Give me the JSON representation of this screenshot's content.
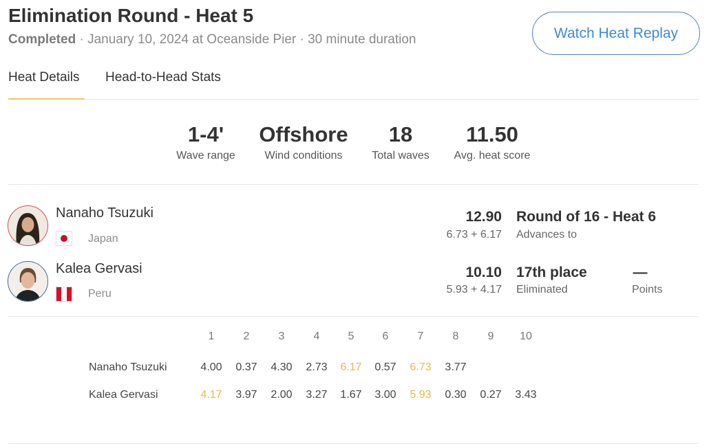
{
  "header": {
    "title": "Elimination Round - Heat 5",
    "status": "Completed",
    "details": " · January 10, 2024 at Oceanside Pier · 30 minute duration",
    "replay_button": "Watch Heat Replay"
  },
  "tabs": [
    {
      "label": "Heat Details",
      "active": true
    },
    {
      "label": "Head-to-Head Stats",
      "active": false
    }
  ],
  "stats": [
    {
      "value": "1-4'",
      "label": "Wave range"
    },
    {
      "value": "Offshore",
      "label": "Wind conditions"
    },
    {
      "value": "18",
      "label": "Total waves"
    },
    {
      "value": "11.50",
      "label": "Avg. heat score"
    }
  ],
  "athletes": [
    {
      "name": "Nanaho Tsuzuki",
      "country": "Japan",
      "flag": "japan-flag",
      "total": "12.90",
      "best_waves": "6.73 + 6.17",
      "result": "Round of 16 - Heat 6",
      "result_label": "Advances to",
      "ring_color": "#c94a4a"
    },
    {
      "name": "Kalea Gervasi",
      "country": "Peru",
      "flag": "peru-flag",
      "total": "10.10",
      "best_waves": "5.93 + 4.17",
      "result": "17th place",
      "result_label": "Eliminated",
      "points": "—",
      "points_label": "Points",
      "ring_color": "#3b5f9a"
    }
  ],
  "wave_table": {
    "headers": [
      "1",
      "2",
      "3",
      "4",
      "5",
      "6",
      "7",
      "8",
      "9",
      "10"
    ],
    "rows": [
      {
        "name": "Nanaho Tsuzuki",
        "scores": [
          "4.00",
          "0.37",
          "4.30",
          "2.73",
          "6.17",
          "0.57",
          "6.73",
          "3.77"
        ],
        "highlighted": [
          4,
          6
        ]
      },
      {
        "name": "Kalea Gervasi",
        "scores": [
          "4.17",
          "3.97",
          "2.00",
          "3.27",
          "1.67",
          "3.00",
          "5.93",
          "0.30",
          "0.27",
          "3.43"
        ],
        "highlighted": [
          0,
          6
        ]
      }
    ]
  },
  "colors": {
    "accent": "#3d8ad9",
    "tab_underline": "#f0c95a",
    "highlight": "#e8b84a"
  }
}
